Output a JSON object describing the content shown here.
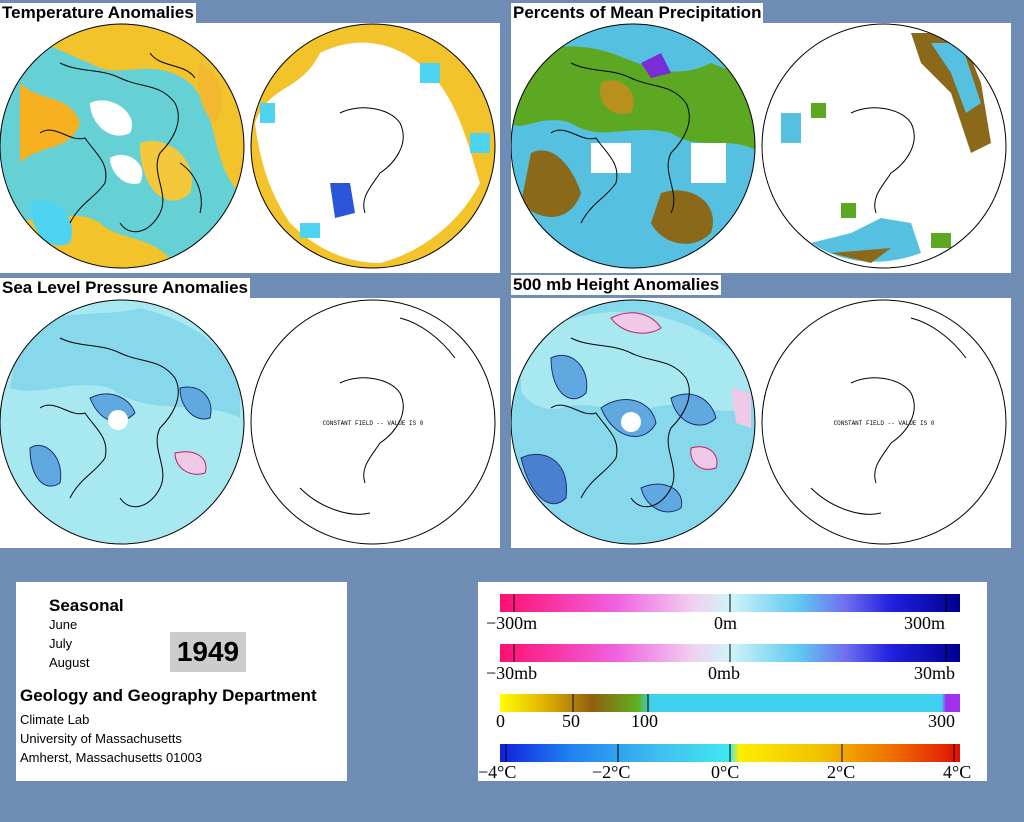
{
  "panels": {
    "temperature": {
      "title": "Temperature Anomalies"
    },
    "precipitation": {
      "title": "Percents of Mean Precipitation"
    },
    "slp": {
      "title": "Sea Level Pressure Anomalies",
      "note": "CONSTANT FIELD -- VALUE IS 0"
    },
    "height": {
      "title": "500 mb Height Anomalies",
      "note": "CONSTANT FIELD -- VALUE IS 0"
    }
  },
  "info": {
    "period": "Seasonal",
    "months": [
      "June",
      "July",
      "August"
    ],
    "year": "1949",
    "department": "Geology and Geography Department",
    "address": [
      "Climate Lab",
      "University of Massachusetts",
      "Amherst, Massachusetts 01003"
    ]
  },
  "legends": {
    "height": {
      "labels": [
        "−300m",
        "0m",
        "300m"
      ]
    },
    "pressure": {
      "labels": [
        "−30mb",
        "0mb",
        "30mb"
      ]
    },
    "precip": {
      "labels": [
        "0",
        "50",
        "100",
        "300"
      ]
    },
    "temp": {
      "labels": [
        "−4°C",
        "−2°C",
        "0°C",
        "2°C",
        "4°C"
      ]
    }
  },
  "colors": {
    "background": "#6f8cb4",
    "temp_warm": "#f0c020",
    "temp_cool": "#40d0f0",
    "precip_dry": "#8a6a1a",
    "precip_green": "#60b020",
    "pressure_fill": "#a8e8f0",
    "pressure_low": "#60a8e0"
  }
}
